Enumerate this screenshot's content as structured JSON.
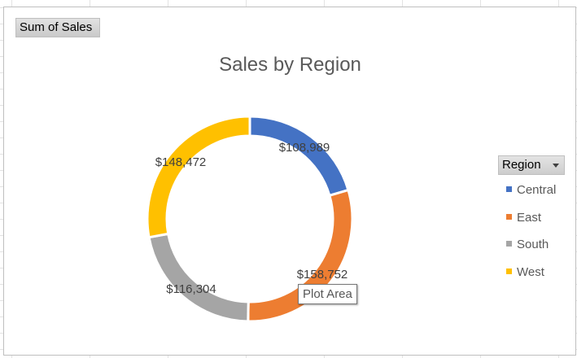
{
  "field_button": {
    "label": "Sum of Sales"
  },
  "legend": {
    "title": "Region"
  },
  "tooltip": {
    "label": "Plot Area"
  },
  "chart_data": {
    "type": "doughnut",
    "title": "Sales by Region",
    "categories": [
      "Central",
      "East",
      "South",
      "West"
    ],
    "values": [
      108989,
      158752,
      116304,
      148472
    ],
    "data_labels": [
      "$108,989",
      "$158,752",
      "$116,304",
      "$148,472"
    ],
    "colors": [
      "#4472c4",
      "#ed7d31",
      "#a5a5a5",
      "#ffc000"
    ],
    "legend_position": "right"
  }
}
